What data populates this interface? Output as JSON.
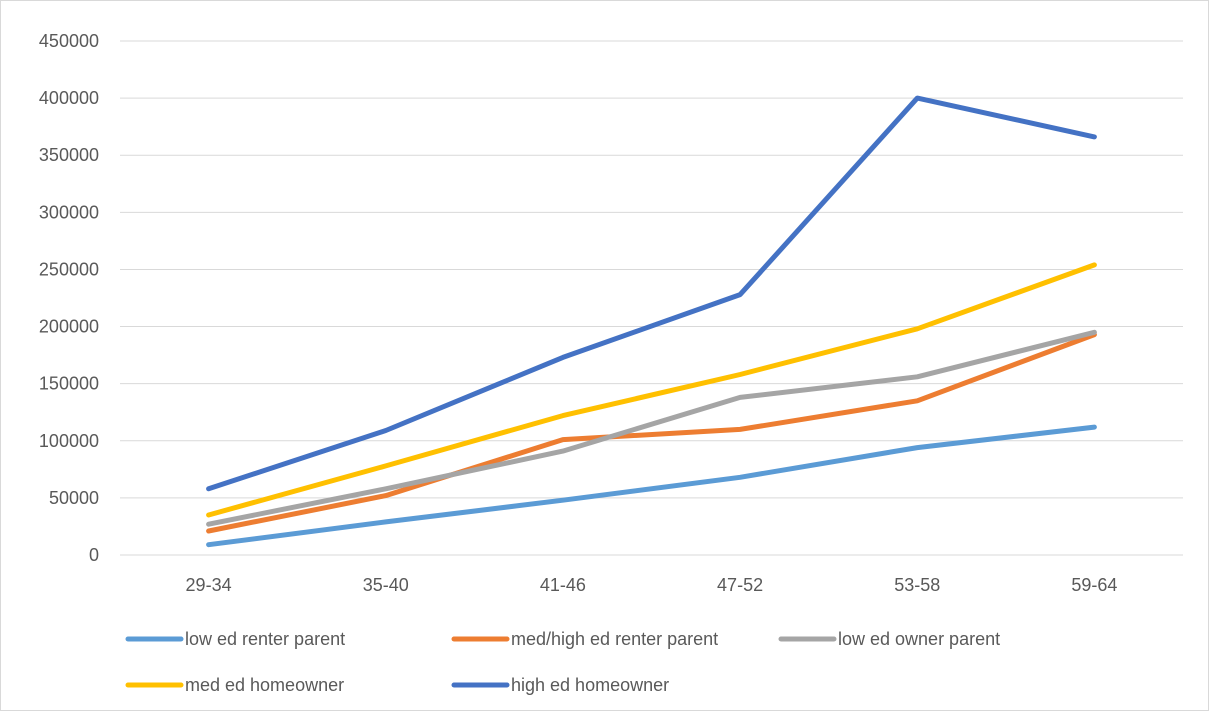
{
  "chart_data": {
    "type": "line",
    "title": "",
    "xlabel": "",
    "ylabel": "",
    "categories": [
      "29-34",
      "35-40",
      "41-46",
      "47-52",
      "53-58",
      "59-64"
    ],
    "ylim": [
      0,
      450000
    ],
    "yticks": [
      0,
      50000,
      100000,
      150000,
      200000,
      250000,
      300000,
      350000,
      400000,
      450000
    ],
    "ytick_labels": [
      "0",
      "50000",
      "100000",
      "150000",
      "200000",
      "250000",
      "300000",
      "350000",
      "400000",
      "450000"
    ],
    "grid": true,
    "legend_position": "bottom",
    "series": [
      {
        "name": "low ed renter parent",
        "color": "#5b9bd5",
        "values": [
          9000,
          29000,
          48000,
          68000,
          94000,
          112000
        ]
      },
      {
        "name": "med/high ed renter parent",
        "color": "#ed7d31",
        "values": [
          21000,
          52000,
          101000,
          110000,
          135000,
          193000
        ]
      },
      {
        "name": "low ed owner parent",
        "color": "#a5a5a5",
        "values": [
          27000,
          58000,
          91000,
          138000,
          156000,
          195000
        ]
      },
      {
        "name": "med ed homeowner",
        "color": "#ffc000",
        "values": [
          35000,
          78000,
          122000,
          158000,
          198000,
          254000
        ]
      },
      {
        "name": "high ed homeowner",
        "color": "#4472c4",
        "values": [
          58000,
          109000,
          173000,
          228000,
          400000,
          366000
        ]
      }
    ]
  }
}
